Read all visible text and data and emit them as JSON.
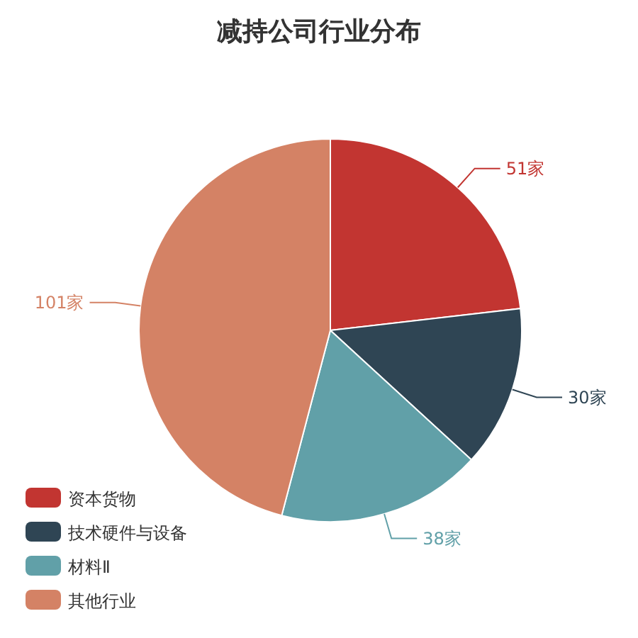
{
  "chart_data": {
    "type": "pie",
    "title": "减持公司行业分布",
    "categories": [
      "资本货物",
      "技术硬件与设备",
      "材料Ⅱ",
      "其他行业"
    ],
    "values": [
      51,
      30,
      38,
      101
    ],
    "value_labels": [
      "51家",
      "30家",
      "38家",
      "101家"
    ],
    "colors": [
      "#c23531",
      "#2f4554",
      "#61a0a8",
      "#d48265"
    ],
    "legend": "bottom left"
  }
}
